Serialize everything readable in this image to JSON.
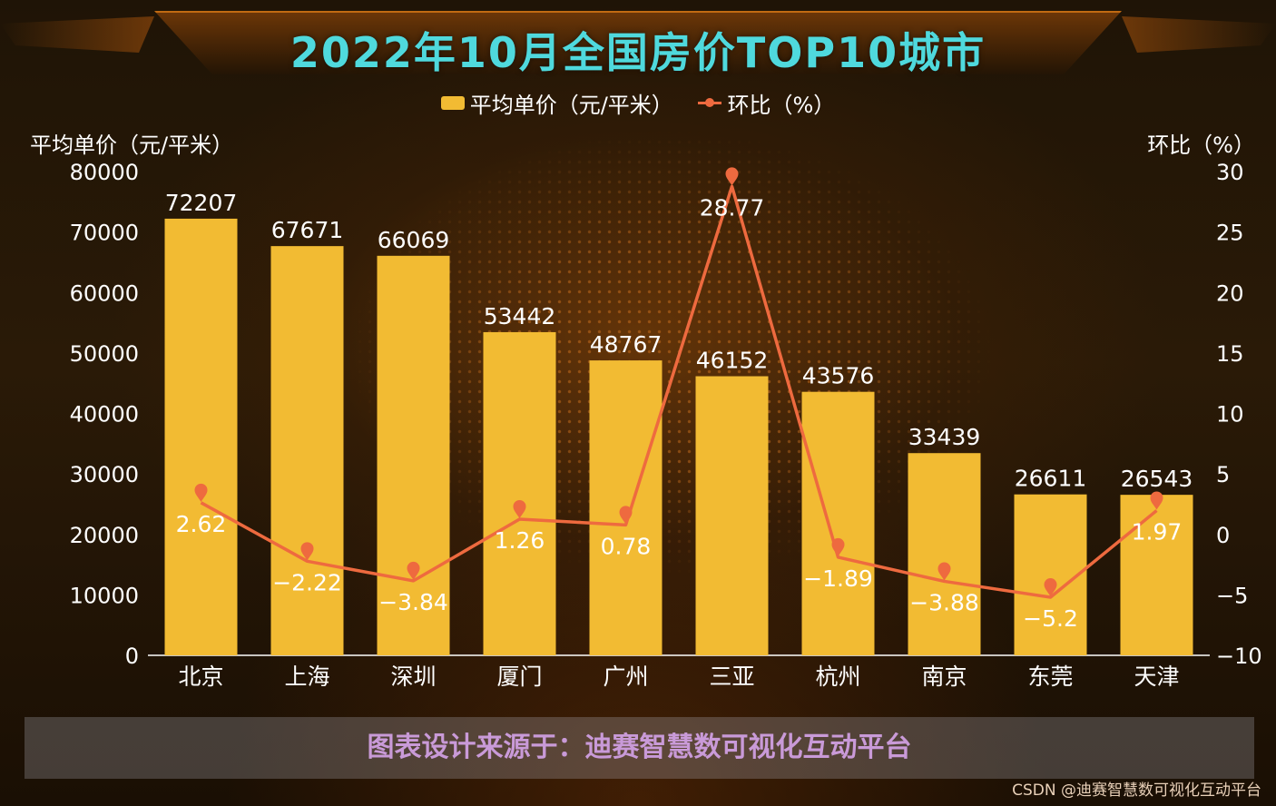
{
  "title": "2022年10月全国房价TOP10城市",
  "footer_text": "图表设计来源于：迪赛智慧数可视化互动平台",
  "watermark": "CSDN @迪赛智慧数可视化互动平台",
  "colors": {
    "bar": "#f2bb33",
    "line": "#ee6a3f",
    "title": "#4fd9dd",
    "footer_text": "#c99ad8"
  },
  "chart_data": {
    "type": "bar",
    "title": "2022年10月全国房价TOP10城市",
    "categories": [
      "北京",
      "上海",
      "深圳",
      "厦门",
      "广州",
      "三亚",
      "杭州",
      "南京",
      "东莞",
      "天津"
    ],
    "series": [
      {
        "name": "平均单价（元/平米）",
        "type": "bar",
        "axis": "left",
        "values": [
          72207,
          67671,
          66069,
          53442,
          48767,
          46152,
          43576,
          33439,
          26611,
          26543
        ]
      },
      {
        "name": "环比（%）",
        "type": "line",
        "axis": "right",
        "values": [
          2.62,
          -2.22,
          -3.84,
          1.26,
          0.78,
          28.77,
          -1.89,
          -3.88,
          -5.2,
          1.97
        ]
      }
    ],
    "ylabel_left": "平均单价（元/平米）",
    "ylabel_right": "环比（%）",
    "ylim_left": [
      0,
      80000
    ],
    "yticks_left": [
      0,
      10000,
      20000,
      30000,
      40000,
      50000,
      60000,
      70000,
      80000
    ],
    "ylim_right": [
      -10,
      30
    ],
    "yticks_right": [
      "−10",
      "−5",
      "0",
      "5",
      "10",
      "15",
      "20",
      "25",
      "30"
    ],
    "line_labels": [
      "2.62",
      "−2.22",
      "−3.84",
      "1.26",
      "0.78",
      "28.77",
      "−1.89",
      "−3.88",
      "−5.2",
      "1.97"
    ],
    "legend_position": "top-center",
    "grid": false
  }
}
